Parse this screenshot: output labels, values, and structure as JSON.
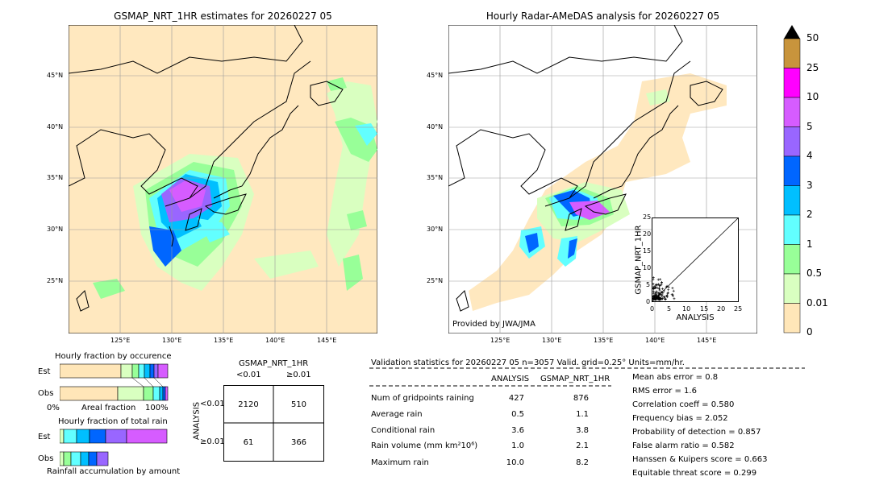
{
  "left_map": {
    "title": "GSMAP_NRT_1HR estimates for 20260227 05",
    "lat_labels": [
      "45°N",
      "40°N",
      "35°N",
      "30°N",
      "25°N"
    ],
    "lon_labels": [
      "125°E",
      "130°E",
      "135°E",
      "140°E",
      "145°E"
    ]
  },
  "right_map": {
    "title": "Hourly Radar-AMeDAS analysis for 20260227 05",
    "lat_labels": [
      "45°N",
      "40°N",
      "35°N",
      "30°N",
      "25°N"
    ],
    "lon_labels": [
      "125°E",
      "130°E",
      "135°E",
      "140°E",
      "145°E"
    ],
    "credit": "Provided by JWA/JMA"
  },
  "colorbar": {
    "labels": [
      "50",
      "25",
      "10",
      "5",
      "4",
      "3",
      "2",
      "1",
      "0.5",
      "0.01",
      "0"
    ],
    "colors": [
      "#c8943c",
      "#ff00ff",
      "#d65cff",
      "#9966ff",
      "#0066ff",
      "#00bfff",
      "#62ffff",
      "#98ff98",
      "#d9ffc0",
      "#ffe6b8"
    ]
  },
  "scatter": {
    "xlabel": "ANALYSIS",
    "ylabel": "GSMAP_NRT_1HR",
    "ticks": [
      "0",
      "5",
      "10",
      "15",
      "20",
      "25"
    ]
  },
  "occurrence": {
    "title": "Hourly fraction by occurence",
    "est_label": "Est",
    "obs_label": "Obs",
    "axis_left": "0%",
    "axis_mid": "Areal fraction",
    "axis_right": "100%"
  },
  "rainfall": {
    "title": "Hourly fraction of total rain",
    "est_label": "Est",
    "obs_label": "Obs",
    "footer": "Rainfall accumulation by amount"
  },
  "contingency": {
    "header": "GSMAP_NRT_1HR",
    "col_lt": "<0.01",
    "col_ge": "≥0.01",
    "row_axis": "ANALYSIS",
    "row_lt": "<0.01",
    "row_ge": "≥0.01",
    "cells": [
      "2120",
      "510",
      "61",
      "366"
    ]
  },
  "validation": {
    "title": "Validation statistics for 20260227 05  n=3057 Valid. grid=0.25° Units=mm/hr.",
    "col_analysis": "ANALYSIS",
    "col_gsmap": "GSMAP_NRT_1HR",
    "rows": [
      {
        "label": "Num of gridpoints raining",
        "analysis": "427",
        "gsmap": "876"
      },
      {
        "label": "Average rain",
        "analysis": "0.5",
        "gsmap": "1.1"
      },
      {
        "label": "Conditional rain",
        "analysis": "3.6",
        "gsmap": "3.8"
      },
      {
        "label": "Rain volume (mm km²10⁶)",
        "analysis": "1.0",
        "gsmap": "2.1"
      },
      {
        "label": "Maximum rain",
        "analysis": "10.0",
        "gsmap": "8.2"
      }
    ],
    "scores": [
      "Mean abs error =    0.8",
      "RMS error =    1.6",
      "Correlation coeff =  0.580",
      "Frequency bias =  2.052",
      "Probability of detection =  0.857",
      "False alarm ratio =  0.582",
      "Hanssen & Kuipers score =  0.663",
      "Equitable threat score =  0.299"
    ]
  },
  "chart_data": [
    {
      "type": "heatmap",
      "title": "GSMAP_NRT_1HR estimates for 20260227 05",
      "x_ticks": [
        "125°E",
        "130°E",
        "135°E",
        "140°E",
        "145°E"
      ],
      "y_ticks": [
        "45°N",
        "40°N",
        "35°N",
        "30°N",
        "25°N"
      ]
    },
    {
      "type": "heatmap",
      "title": "Hourly Radar-AMeDAS analysis for 20260227 05",
      "x_ticks": [
        "125°E",
        "130°E",
        "135°E",
        "140°E",
        "145°E"
      ],
      "y_ticks": [
        "45°N",
        "40°N",
        "35°N",
        "30°N",
        "25°N"
      ]
    },
    {
      "type": "scatter",
      "xlabel": "ANALYSIS",
      "ylabel": "GSMAP_NRT_1HR",
      "xlim": [
        0,
        25
      ],
      "ylim": [
        0,
        25
      ]
    },
    {
      "type": "table",
      "categories": [
        "<0.01",
        "≥0.01"
      ],
      "values": [
        [
          2120,
          510
        ],
        [
          61,
          366
        ]
      ]
    }
  ]
}
